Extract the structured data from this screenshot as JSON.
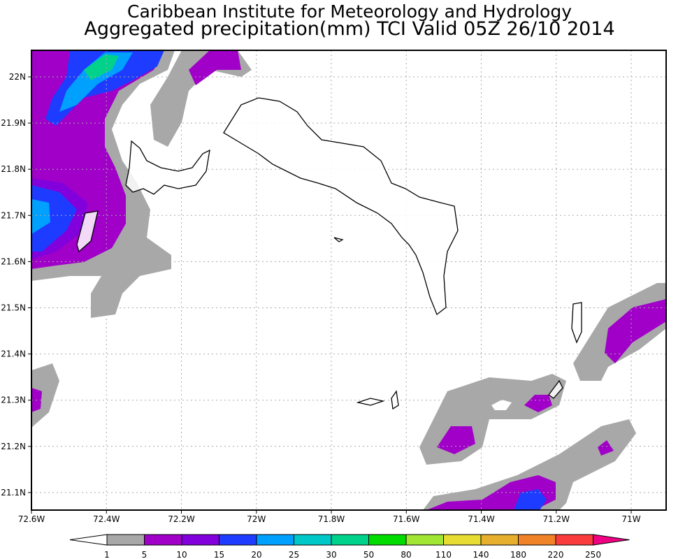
{
  "title_line1": "Caribbean Institute for Meteorology and Hydrology",
  "title_line2": "Aggregated precipitation(mm) TCI Valid 05Z 26/10 2014",
  "map": {
    "lon_range": [
      -72.6,
      -70.9
    ],
    "lat_range": [
      21.06,
      22.06
    ],
    "lon_ticks": [
      {
        "v": -72.6,
        "label": "72.6W"
      },
      {
        "v": -72.4,
        "label": "72.4W"
      },
      {
        "v": -72.2,
        "label": "72.2W"
      },
      {
        "v": -72.0,
        "label": "72W"
      },
      {
        "v": -71.8,
        "label": "71.8W"
      },
      {
        "v": -71.6,
        "label": "71.6W"
      },
      {
        "v": -71.4,
        "label": "71.4W"
      },
      {
        "v": -71.2,
        "label": "71.2W"
      },
      {
        "v": -71.0,
        "label": "71W"
      }
    ],
    "lat_ticks": [
      {
        "v": 22.0,
        "label": "22N"
      },
      {
        "v": 21.9,
        "label": "21.9N"
      },
      {
        "v": 21.8,
        "label": "21.8N"
      },
      {
        "v": 21.7,
        "label": "21.7N"
      },
      {
        "v": 21.6,
        "label": "21.6N"
      },
      {
        "v": 21.5,
        "label": "21.5N"
      },
      {
        "v": 21.4,
        "label": "21.4N"
      },
      {
        "v": 21.3,
        "label": "21.3N"
      },
      {
        "v": 21.2,
        "label": "21.2N"
      },
      {
        "v": 21.1,
        "label": "21.1N"
      }
    ]
  },
  "colorbar": {
    "levels": [
      "1",
      "5",
      "10",
      "15",
      "20",
      "25",
      "30",
      "50",
      "80",
      "110",
      "140",
      "180",
      "220",
      "250"
    ],
    "colors": [
      "#ffffff",
      "#a8a8a8",
      "#a000c8",
      "#8200dc",
      "#1e3cff",
      "#00a0ff",
      "#00c8c8",
      "#00d28c",
      "#00dc00",
      "#a0e632",
      "#e6dc32",
      "#e6af2d",
      "#f08228",
      "#fa3c3c",
      "#f00082"
    ]
  }
}
